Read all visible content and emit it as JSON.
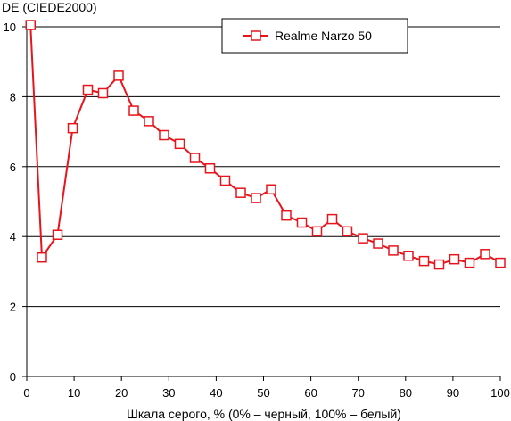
{
  "chart_data": {
    "type": "line",
    "title": "",
    "ylabel": "DE (CIEDE2000)",
    "xlabel": "Шкала серого, % (0% – черный, 100% – белый)",
    "xlim": [
      0,
      100
    ],
    "ylim": [
      0,
      10
    ],
    "x_ticks": [
      "0",
      "10",
      "20",
      "30",
      "40",
      "50",
      "60",
      "70",
      "80",
      "90",
      "100"
    ],
    "y_ticks": [
      "0",
      "2",
      "4",
      "6",
      "8",
      "10"
    ],
    "grid": "horizontal",
    "legend_position": "top-right",
    "colors": {
      "line": "#e8141c",
      "marker_fill": "#ffffff",
      "grid": "#000000"
    },
    "series": [
      {
        "name": "Realme Narzo 50",
        "marker": "open-square",
        "x": [
          0.8,
          3.2,
          6.5,
          9.7,
          12.9,
          16.1,
          19.4,
          22.6,
          25.8,
          29.0,
          32.3,
          35.5,
          38.7,
          41.9,
          45.2,
          48.4,
          51.6,
          54.8,
          58.1,
          61.3,
          64.5,
          67.7,
          71.0,
          74.2,
          77.4,
          80.6,
          83.9,
          87.1,
          90.3,
          93.5,
          96.8,
          100.0
        ],
        "y": [
          10.05,
          3.4,
          4.05,
          7.1,
          8.2,
          8.1,
          8.6,
          7.6,
          7.3,
          6.9,
          6.65,
          6.25,
          5.95,
          5.6,
          5.25,
          5.1,
          5.35,
          4.6,
          4.4,
          4.15,
          4.5,
          4.15,
          3.95,
          3.8,
          3.6,
          3.45,
          3.3,
          3.2,
          3.35,
          3.25,
          3.5,
          3.25
        ]
      }
    ]
  }
}
